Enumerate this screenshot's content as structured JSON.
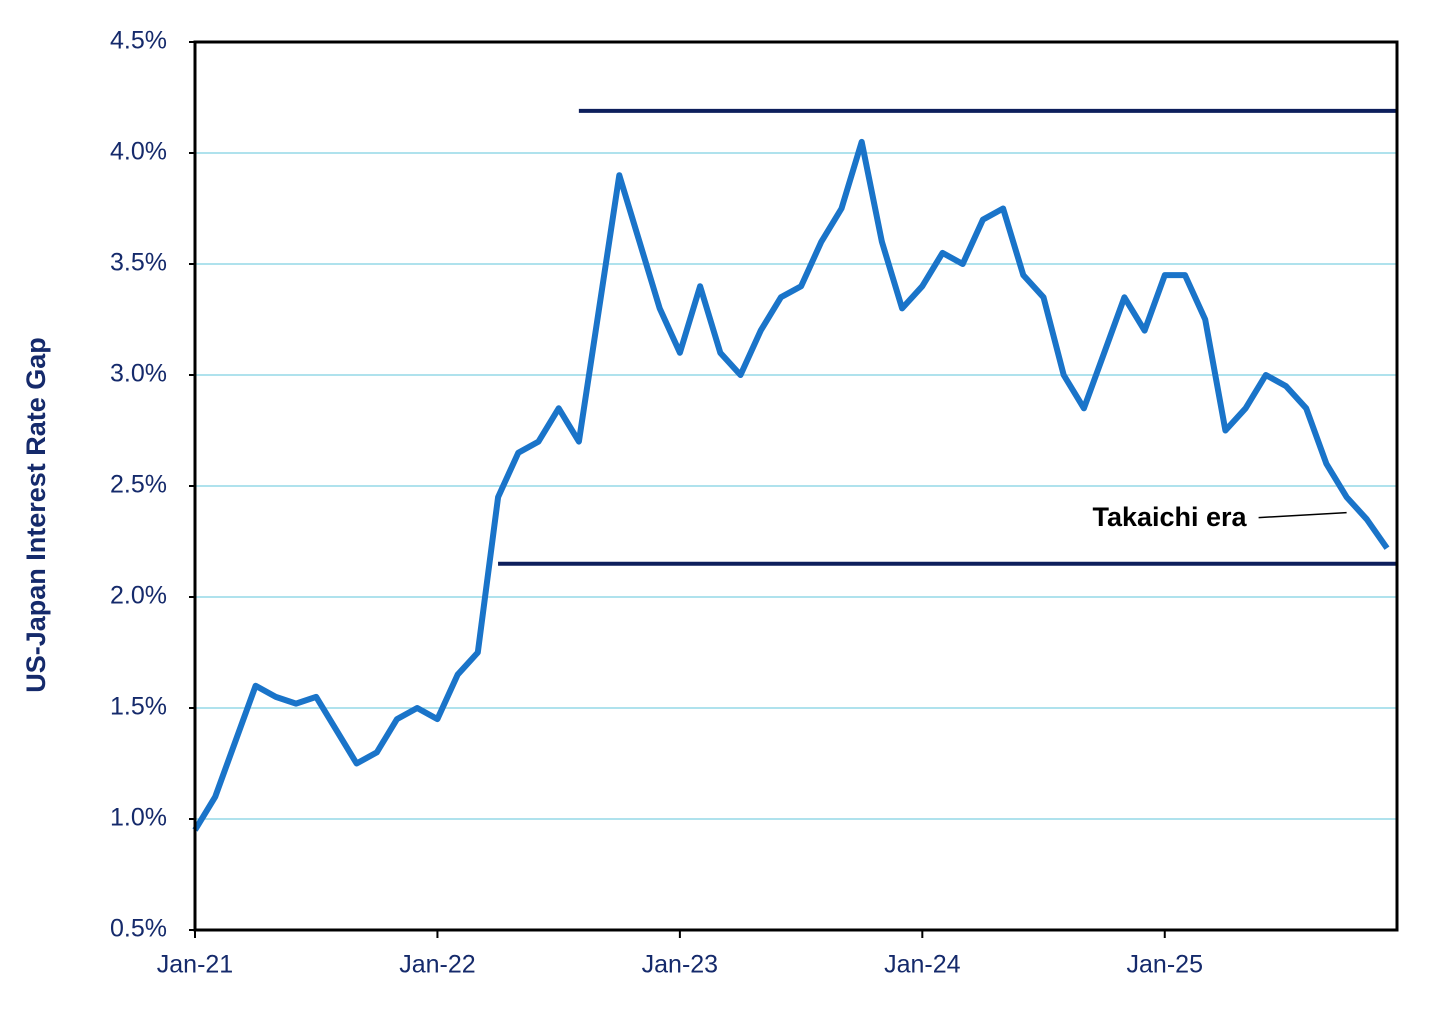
{
  "chart_data": {
    "type": "line",
    "y_label": "US-Japan Interest Rate Gap",
    "x": [
      "2021-01",
      "2021-02",
      "2021-03",
      "2021-04",
      "2021-05",
      "2021-06",
      "2021-07",
      "2021-08",
      "2021-09",
      "2021-10",
      "2021-11",
      "2021-12",
      "2022-01",
      "2022-02",
      "2022-03",
      "2022-04",
      "2022-05",
      "2022-06",
      "2022-07",
      "2022-08",
      "2022-09",
      "2022-10",
      "2022-11",
      "2022-12",
      "2023-01",
      "2023-02",
      "2023-03",
      "2023-04",
      "2023-05",
      "2023-06",
      "2023-07",
      "2023-08",
      "2023-09",
      "2023-10",
      "2023-11",
      "2023-12",
      "2024-01",
      "2024-02",
      "2024-03",
      "2024-04",
      "2024-05",
      "2024-06",
      "2024-07",
      "2024-08",
      "2024-09",
      "2024-10",
      "2024-11",
      "2024-12",
      "2025-01",
      "2025-02",
      "2025-03",
      "2025-04",
      "2025-05",
      "2025-06",
      "2025-07",
      "2025-08",
      "2025-09",
      "2025-10",
      "2025-11",
      "2025-12"
    ],
    "series": [
      {
        "color": "#1a74c9",
        "values": [
          0.95,
          1.1,
          1.35,
          1.6,
          1.55,
          1.52,
          1.55,
          1.4,
          1.25,
          1.3,
          1.45,
          1.5,
          1.45,
          1.65,
          1.75,
          2.45,
          2.65,
          2.7,
          2.85,
          2.7,
          3.3,
          3.9,
          3.6,
          3.3,
          3.1,
          3.4,
          3.1,
          3.0,
          3.2,
          3.35,
          3.4,
          3.6,
          3.75,
          4.05,
          3.6,
          3.3,
          3.4,
          3.55,
          3.5,
          3.7,
          3.75,
          3.45,
          3.35,
          3.0,
          2.85,
          3.1,
          3.35,
          3.2,
          3.45,
          3.45,
          3.25,
          2.75,
          2.85,
          3.0,
          2.95,
          2.85,
          2.6,
          2.45,
          2.35,
          2.22
        ]
      }
    ],
    "xlim": [
      "2021-01",
      "2025-12"
    ],
    "xticks": [
      {
        "value": "2021-01",
        "label": "Jan-21"
      },
      {
        "value": "2022-01",
        "label": "Jan-22"
      },
      {
        "value": "2023-01",
        "label": "Jan-23"
      },
      {
        "value": "2024-01",
        "label": "Jan-24"
      },
      {
        "value": "2025-01",
        "label": "Jan-25"
      }
    ],
    "ylim": [
      0.5,
      4.5
    ],
    "yticks": [
      {
        "value": 0.5,
        "label": "0.5%"
      },
      {
        "value": 1.0,
        "label": "1.0%"
      },
      {
        "value": 1.5,
        "label": "1.5%"
      },
      {
        "value": 2.0,
        "label": "2.0%"
      },
      {
        "value": 2.5,
        "label": "2.5%"
      },
      {
        "value": 3.0,
        "label": "3.0%"
      },
      {
        "value": 3.5,
        "label": "3.5%"
      },
      {
        "value": 4.0,
        "label": "4.0%"
      },
      {
        "value": 4.5,
        "label": "4.5%"
      }
    ],
    "grid": true,
    "grid_color": "#7fd0e2",
    "reference_lines": [
      {
        "value": 4.19,
        "x_start": "2022-08",
        "color": "#0d1f5c"
      },
      {
        "value": 2.15,
        "x_start": "2022-04",
        "color": "#0d1f5c"
      }
    ],
    "annotations": [
      {
        "text": "Takaichi era",
        "x": "2025-10",
        "y": 2.38
      }
    ]
  }
}
